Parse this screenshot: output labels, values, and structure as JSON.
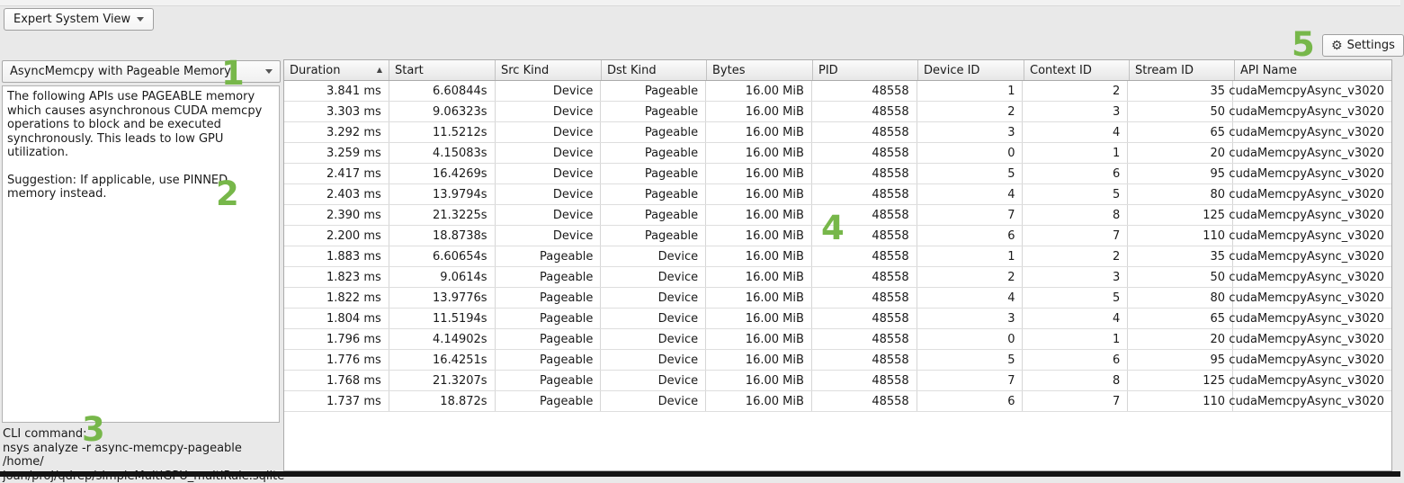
{
  "toolbar": {
    "view_selector_label": "Expert System View",
    "settings_button_label": "Settings",
    "settings_gear_icon": "⚙"
  },
  "left_panel": {
    "rule_selector_value": "AsyncMemcpy with Pageable Memory",
    "description_paragraph_1": "The following APIs use PAGEABLE memory which causes asynchronous CUDA memcpy operations to block and be executed synchronously. This leads to low GPU utilization.",
    "description_paragraph_2": "Suggestion: If applicable, use PINNED memory instead.",
    "cli_label": "CLI command:",
    "cli_command_line_1": "nsys analyze -r async-memcpy-pageable /home/",
    "cli_command_line_2": "joan/proj/qdrep/simpleMultiGPU_multiRule.sqlite"
  },
  "table": {
    "columns": [
      "Duration",
      "Start",
      "Src Kind",
      "Dst Kind",
      "Bytes",
      "PID",
      "Device ID",
      "Context ID",
      "Stream ID",
      "API Name"
    ],
    "sort_column": "Duration",
    "sort_direction": "ascending",
    "sort_icon": "▲",
    "rows": [
      [
        "3.841 ms",
        "6.60844s",
        "Device",
        "Pageable",
        "16.00 MiB",
        "48558",
        "1",
        "2",
        "35",
        "cudaMemcpyAsync_v3020"
      ],
      [
        "3.303 ms",
        "9.06323s",
        "Device",
        "Pageable",
        "16.00 MiB",
        "48558",
        "2",
        "3",
        "50",
        "cudaMemcpyAsync_v3020"
      ],
      [
        "3.292 ms",
        "11.5212s",
        "Device",
        "Pageable",
        "16.00 MiB",
        "48558",
        "3",
        "4",
        "65",
        "cudaMemcpyAsync_v3020"
      ],
      [
        "3.259 ms",
        "4.15083s",
        "Device",
        "Pageable",
        "16.00 MiB",
        "48558",
        "0",
        "1",
        "20",
        "cudaMemcpyAsync_v3020"
      ],
      [
        "2.417 ms",
        "16.4269s",
        "Device",
        "Pageable",
        "16.00 MiB",
        "48558",
        "5",
        "6",
        "95",
        "cudaMemcpyAsync_v3020"
      ],
      [
        "2.403 ms",
        "13.9794s",
        "Device",
        "Pageable",
        "16.00 MiB",
        "48558",
        "4",
        "5",
        "80",
        "cudaMemcpyAsync_v3020"
      ],
      [
        "2.390 ms",
        "21.3225s",
        "Device",
        "Pageable",
        "16.00 MiB",
        "48558",
        "7",
        "8",
        "125",
        "cudaMemcpyAsync_v3020"
      ],
      [
        "2.200 ms",
        "18.8738s",
        "Device",
        "Pageable",
        "16.00 MiB",
        "48558",
        "6",
        "7",
        "110",
        "cudaMemcpyAsync_v3020"
      ],
      [
        "1.883 ms",
        "6.60654s",
        "Pageable",
        "Device",
        "16.00 MiB",
        "48558",
        "1",
        "2",
        "35",
        "cudaMemcpyAsync_v3020"
      ],
      [
        "1.823 ms",
        "9.0614s",
        "Pageable",
        "Device",
        "16.00 MiB",
        "48558",
        "2",
        "3",
        "50",
        "cudaMemcpyAsync_v3020"
      ],
      [
        "1.822 ms",
        "13.9776s",
        "Pageable",
        "Device",
        "16.00 MiB",
        "48558",
        "4",
        "5",
        "80",
        "cudaMemcpyAsync_v3020"
      ],
      [
        "1.804 ms",
        "11.5194s",
        "Pageable",
        "Device",
        "16.00 MiB",
        "48558",
        "3",
        "4",
        "65",
        "cudaMemcpyAsync_v3020"
      ],
      [
        "1.796 ms",
        "4.14902s",
        "Pageable",
        "Device",
        "16.00 MiB",
        "48558",
        "0",
        "1",
        "20",
        "cudaMemcpyAsync_v3020"
      ],
      [
        "1.776 ms",
        "16.4251s",
        "Pageable",
        "Device",
        "16.00 MiB",
        "48558",
        "5",
        "6",
        "95",
        "cudaMemcpyAsync_v3020"
      ],
      [
        "1.768 ms",
        "21.3207s",
        "Pageable",
        "Device",
        "16.00 MiB",
        "48558",
        "7",
        "8",
        "125",
        "cudaMemcpyAsync_v3020"
      ],
      [
        "1.737 ms",
        "18.872s",
        "Pageable",
        "Device",
        "16.00 MiB",
        "48558",
        "6",
        "7",
        "110",
        "cudaMemcpyAsync_v3020"
      ]
    ]
  },
  "annotations": {
    "color": "#77b74a",
    "items": [
      "1",
      "2",
      "3",
      "4",
      "5"
    ]
  }
}
